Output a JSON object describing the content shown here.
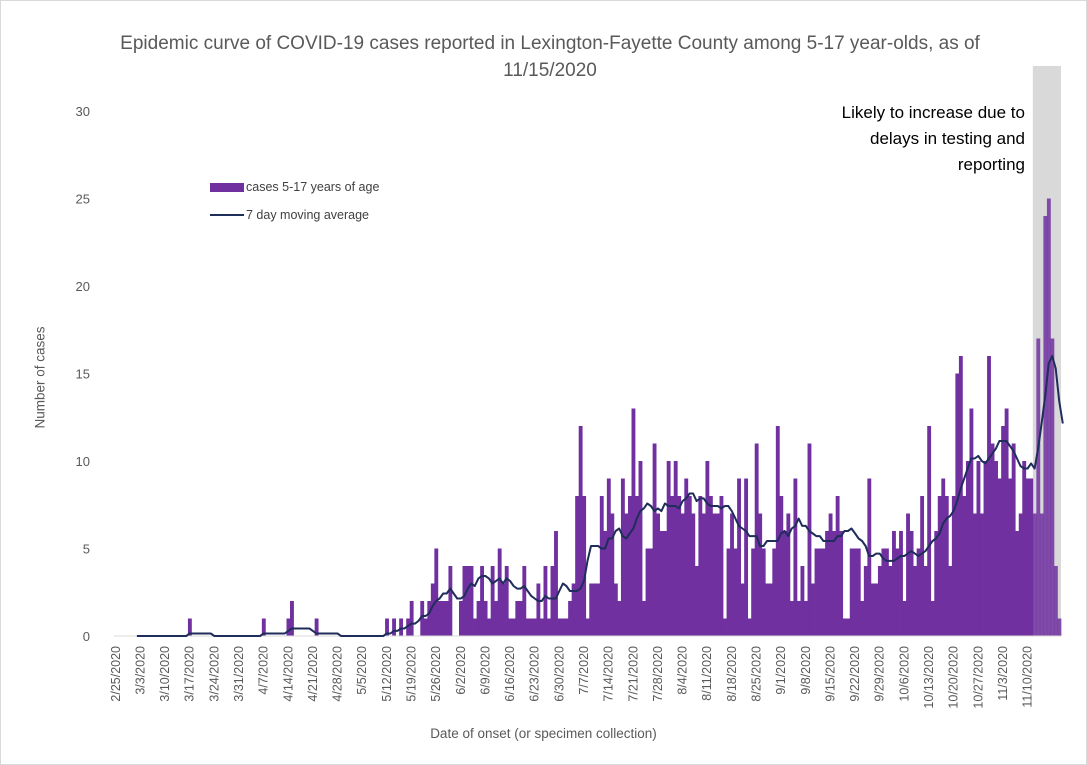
{
  "chart_data": {
    "type": "bar",
    "title": "Epidemic curve of COVID-19 cases reported in Lexington-Fayette County among 5-17 year-olds, as of 11/15/2020",
    "xlabel": "Date of onset (or specimen collection)",
    "ylabel": "Number of cases",
    "ylim": [
      0,
      30
    ],
    "yticks": [
      0,
      5,
      10,
      15,
      20,
      25,
      30
    ],
    "start_date": "2/25/2020",
    "end_date": "11/15/2020",
    "x_tick_labels": [
      "2/25/2020",
      "3/3/2020",
      "3/10/2020",
      "3/17/2020",
      "3/24/2020",
      "3/31/2020",
      "4/7/2020",
      "4/14/2020",
      "4/21/2020",
      "4/28/2020",
      "5/5/2020",
      "5/12/2020",
      "5/19/2020",
      "5/26/2020",
      "6/2/2020",
      "6/9/2020",
      "6/16/2020",
      "6/23/2020",
      "6/30/2020",
      "7/7/2020",
      "7/14/2020",
      "7/21/2020",
      "7/28/2020",
      "8/4/2020",
      "8/11/2020",
      "8/18/2020",
      "8/25/2020",
      "9/1/2020",
      "9/8/2020",
      "9/15/2020",
      "9/22/2020",
      "9/29/2020",
      "10/6/2020",
      "10/13/2020",
      "10/20/2020",
      "10/27/2020",
      "11/3/2020",
      "11/10/2020"
    ],
    "legend_placement": "upper-left",
    "grid": false,
    "series": [
      {
        "name": "cases 5-17 years of age",
        "kind": "bar",
        "color": "#7030A0",
        "values": [
          0,
          0,
          0,
          0,
          0,
          0,
          0,
          0,
          0,
          0,
          0,
          0,
          0,
          0,
          0,
          0,
          0,
          0,
          0,
          0,
          0,
          1,
          0,
          0,
          0,
          0,
          0,
          0,
          0,
          0,
          0,
          0,
          0,
          0,
          0,
          0,
          0,
          0,
          0,
          0,
          0,
          0,
          1,
          0,
          0,
          0,
          0,
          0,
          0,
          1,
          2,
          0,
          0,
          0,
          0,
          0,
          0,
          1,
          0,
          0,
          0,
          0,
          0,
          0,
          0,
          0,
          0,
          0,
          0,
          0,
          0,
          0,
          0,
          0,
          0,
          0,
          0,
          1,
          0,
          1,
          0,
          1,
          0,
          1,
          2,
          0,
          0,
          2,
          1,
          2,
          3,
          5,
          2,
          2,
          2,
          4,
          0,
          0,
          2,
          4,
          4,
          4,
          1,
          2,
          4,
          2,
          1,
          4,
          2,
          5,
          3,
          4,
          1,
          1,
          2,
          2,
          4,
          1,
          1,
          1,
          3,
          1,
          4,
          1,
          4,
          6,
          1,
          1,
          1,
          2,
          3,
          8,
          12,
          8,
          1,
          3,
          3,
          3,
          8,
          6,
          9,
          7,
          3,
          2,
          9,
          7,
          8,
          13,
          8,
          10,
          2,
          5,
          5,
          11,
          7,
          6,
          6,
          10,
          8,
          10,
          8,
          7,
          9,
          8,
          7,
          4,
          8,
          7,
          10,
          8,
          7,
          7,
          8,
          1,
          5,
          7,
          5,
          9,
          3,
          9,
          1,
          5,
          11,
          7,
          5,
          3,
          3,
          5,
          12,
          8,
          6,
          7,
          2,
          9,
          2,
          4,
          2,
          11,
          3,
          5,
          5,
          5,
          6,
          7,
          6,
          8,
          6,
          1,
          1,
          5,
          5,
          5,
          2,
          4,
          9,
          3,
          3,
          4,
          5,
          5,
          4,
          6,
          5,
          6,
          2,
          7,
          6,
          4,
          5,
          8,
          4,
          12,
          2,
          6,
          8,
          9,
          8,
          4,
          8,
          15,
          16,
          8,
          10,
          13,
          7,
          10,
          7,
          10,
          16,
          11,
          10,
          9,
          12,
          13,
          9,
          11,
          6,
          7,
          10,
          9,
          9,
          7,
          17,
          7,
          24,
          25,
          17,
          4,
          1
        ]
      },
      {
        "name": "7 day moving average",
        "kind": "line",
        "color": "#1F2D5A",
        "values": [
          null,
          null,
          null,
          null,
          null,
          null,
          0,
          0,
          0,
          0,
          0,
          0,
          0,
          0,
          0,
          0,
          0,
          0,
          0,
          0,
          0,
          0.14,
          0.14,
          0.14,
          0.14,
          0.14,
          0.14,
          0.14,
          0,
          0,
          0,
          0,
          0,
          0,
          0,
          0,
          0,
          0,
          0,
          0,
          0,
          0,
          0.14,
          0.14,
          0.14,
          0.14,
          0.14,
          0.14,
          0.14,
          0.29,
          0.43,
          0.43,
          0.43,
          0.43,
          0.43,
          0.43,
          0.29,
          0.14,
          0.14,
          0.14,
          0.14,
          0.14,
          0.14,
          0.14,
          0,
          0,
          0,
          0,
          0,
          0,
          0,
          0,
          0,
          0,
          0,
          0,
          0,
          0.14,
          0.14,
          0.29,
          0.29,
          0.43,
          0.43,
          0.57,
          0.71,
          0.71,
          0.86,
          1.14,
          1.14,
          1.29,
          1.71,
          2,
          2.14,
          2.43,
          2.43,
          2.71,
          2.43,
          2.14,
          2.14,
          2.29,
          2.71,
          3,
          2.86,
          3.29,
          3.43,
          3.43,
          3.29,
          3,
          3.14,
          3.29,
          3,
          3.29,
          3.14,
          2.86,
          2.71,
          2.71,
          2.86,
          2.57,
          2.29,
          2.14,
          2,
          2,
          2.29,
          2.14,
          2.14,
          2.14,
          2.57,
          3,
          2.86,
          2.57,
          2.57,
          2.57,
          2.71,
          3.14,
          4.29,
          5.14,
          5.14,
          5.14,
          5,
          5,
          5.57,
          5.57,
          6,
          6.14,
          5.71,
          5.57,
          5.86,
          6.14,
          6.71,
          7.14,
          7.29,
          7.57,
          7.43,
          7.14,
          7.29,
          7.14,
          7.57,
          7.43,
          7.43,
          7.43,
          7.29,
          7.71,
          7.86,
          8.14,
          8.14,
          7.71,
          7.86,
          7.86,
          7.57,
          7.43,
          7.43,
          7.43,
          7.29,
          7.43,
          7.43,
          7.14,
          6.71,
          6.29,
          6.14,
          6,
          5.71,
          5.71,
          5.71,
          5.14,
          5.14,
          5.43,
          5.43,
          5.43,
          5.43,
          5.86,
          6,
          5.71,
          6.14,
          6.29,
          6.71,
          6.29,
          6.29,
          6,
          5.86,
          5.71,
          5.71,
          5.43,
          5.43,
          5.43,
          5.43,
          5.71,
          5.71,
          6,
          6,
          6.14,
          5.86,
          5.57,
          5.43,
          5.14,
          4.57,
          4.57,
          4.71,
          4.71,
          4.43,
          4.29,
          4.29,
          4.29,
          4.43,
          4.57,
          4.57,
          4.71,
          4.86,
          4.71,
          4.57,
          4.71,
          4.86,
          5.14,
          5.43,
          5.57,
          5.86,
          6.43,
          6.71,
          6.86,
          7.14,
          7.71,
          8.43,
          9,
          9.57,
          10.14,
          10.14,
          10.29,
          10,
          9.86,
          10.14,
          10.43,
          10.71,
          11.14,
          11.14,
          11.14,
          10.86,
          10.57,
          10.14,
          9.71,
          9.57,
          9.57,
          9.86,
          9.57,
          10.71,
          12.14,
          13.71,
          15.57,
          16,
          15.29,
          13.43,
          12.14
        ]
      }
    ]
  },
  "annotation": {
    "text_lines": [
      "Likely to increase due to",
      "delays in testing and",
      "reporting"
    ],
    "shaded_days_from_end": 8
  }
}
